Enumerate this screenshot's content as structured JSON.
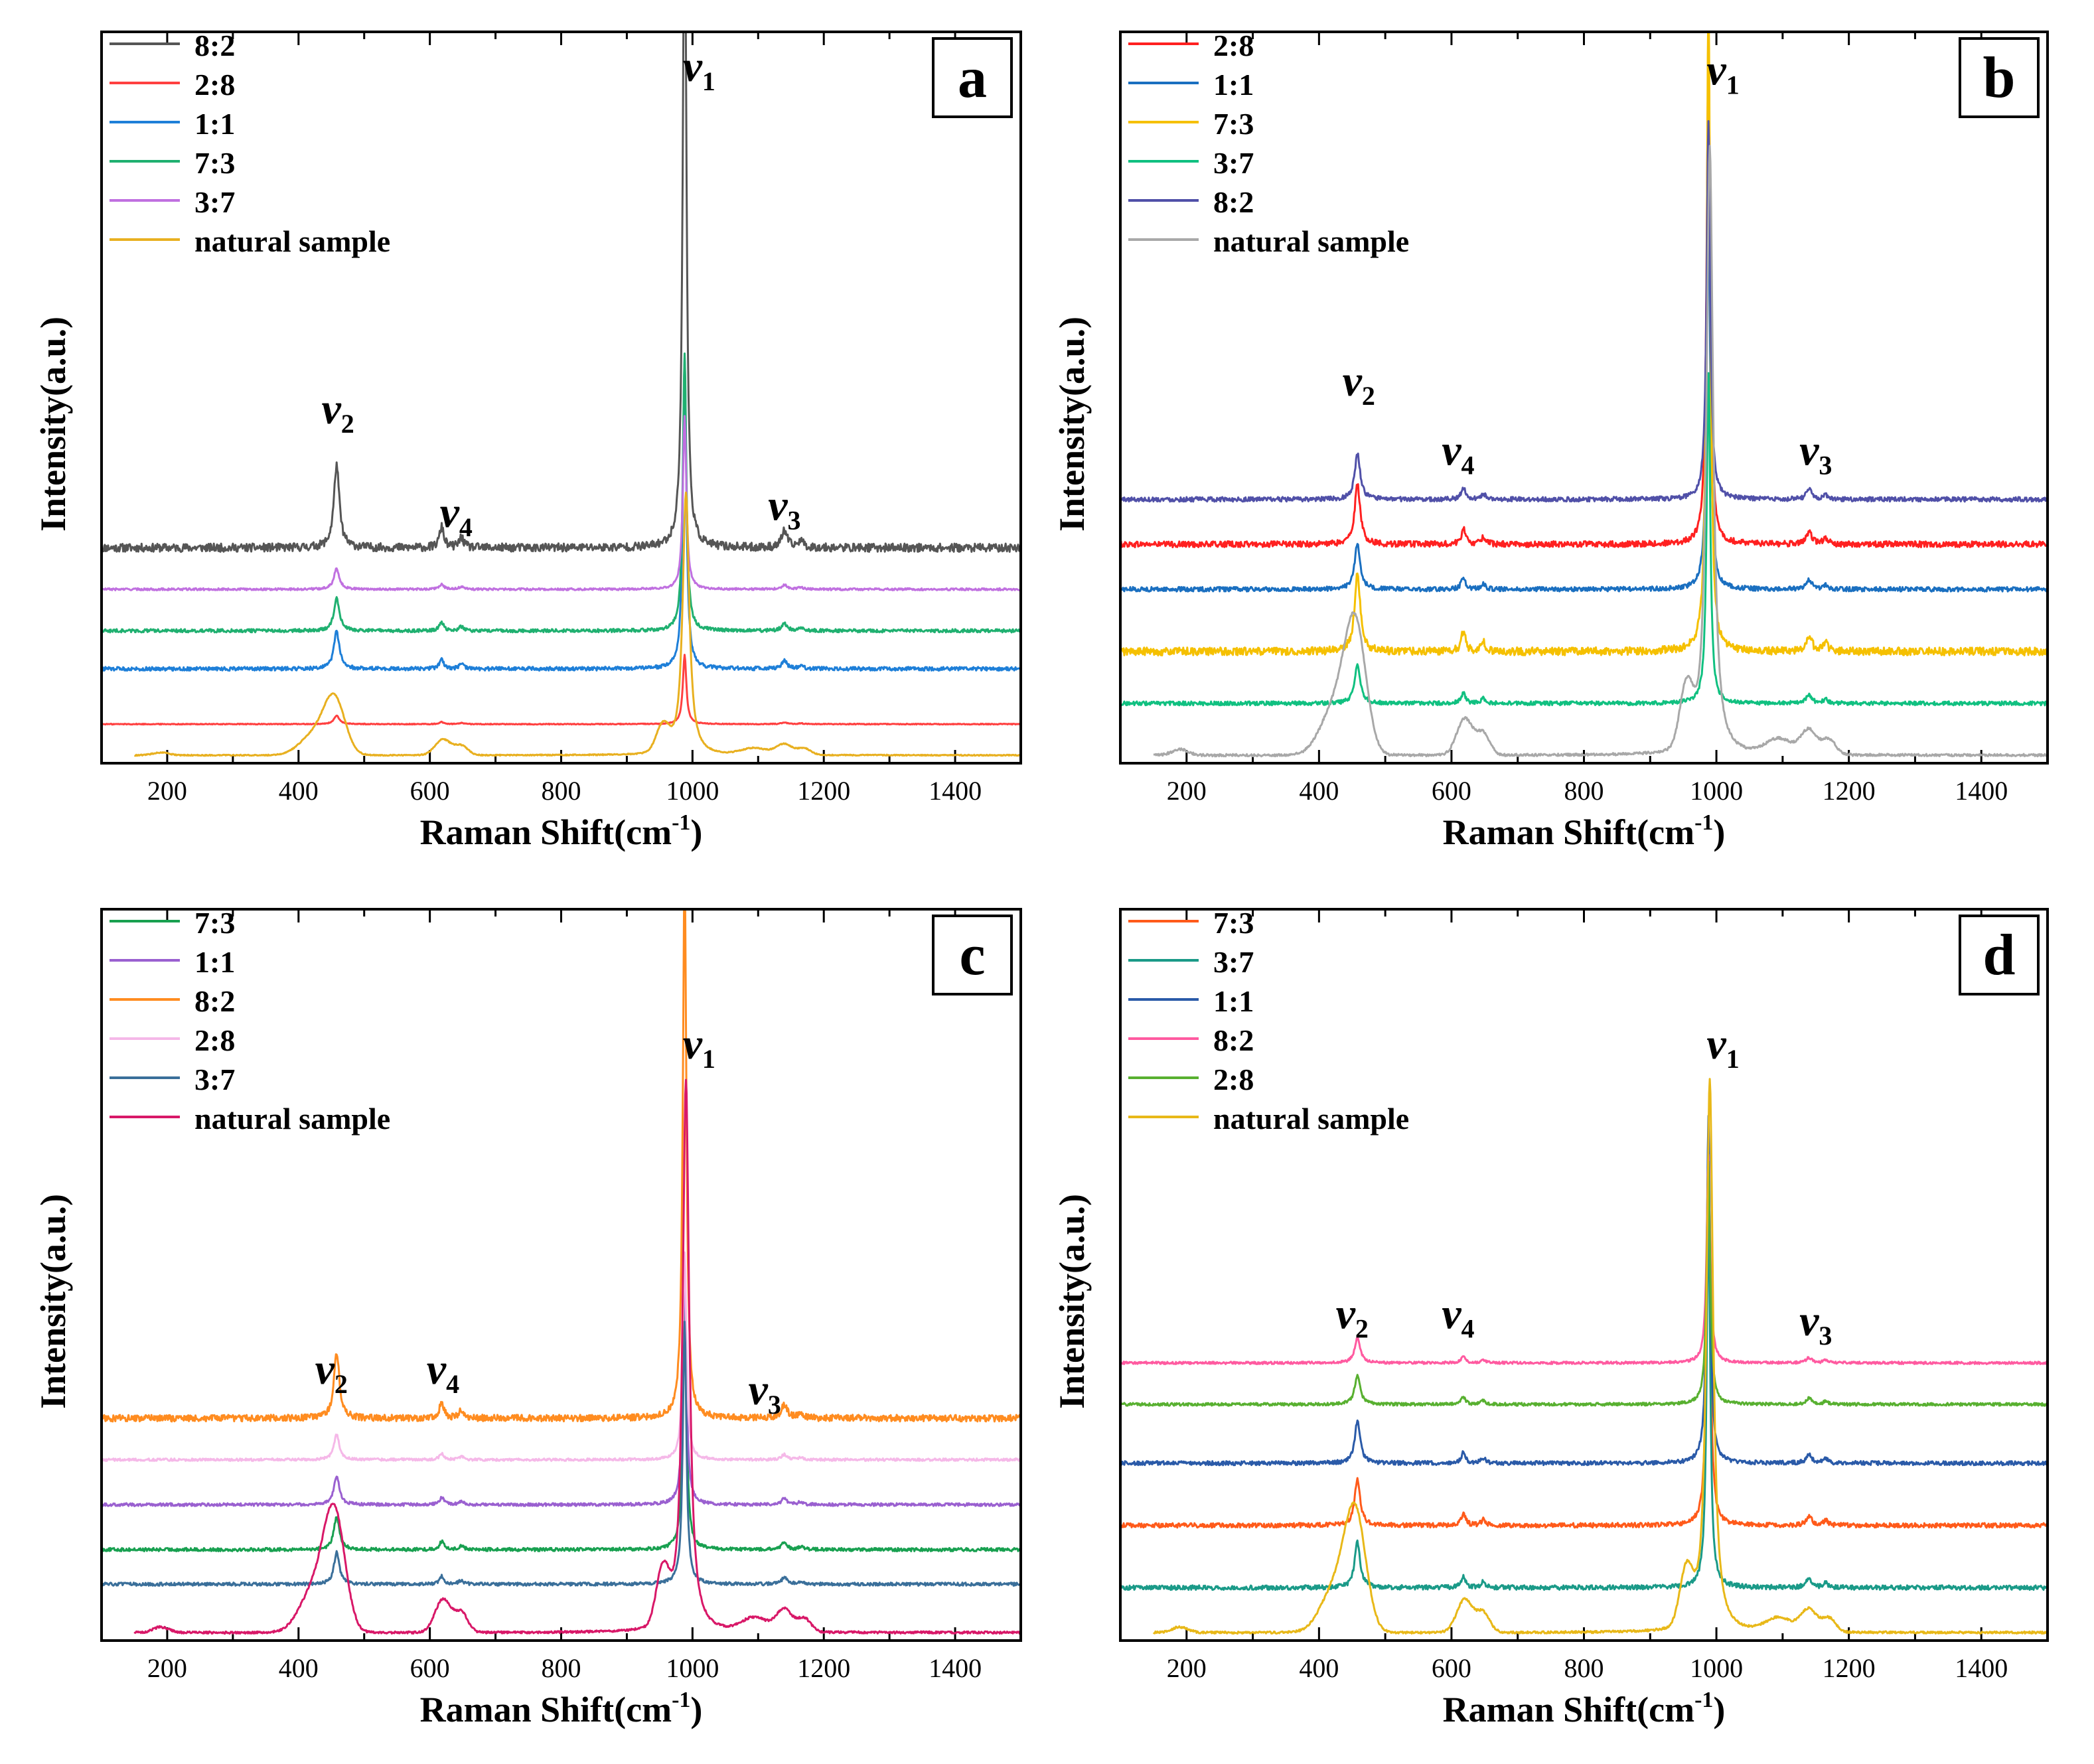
{
  "chart_data": [
    {
      "type": "line",
      "panel_label": "a",
      "xlabel": "Raman  Shift(cm",
      "xlabel_sup": "-1",
      "xlabel_end": ")",
      "ylabel": "Intensity(a.u.)",
      "xlim": [
        100,
        1500
      ],
      "xticks": [
        200,
        400,
        600,
        800,
        1000,
        1200,
        1400
      ],
      "legend_position": "top-left",
      "series": [
        {
          "name": "8:2",
          "color": "#555555",
          "offset": 0.3,
          "scale": 1.0
        },
        {
          "name": "2:8",
          "color": "#ff4040",
          "offset": 0.045,
          "scale": 0.1
        },
        {
          "name": "1:1",
          "color": "#1e7fd8",
          "offset": 0.125,
          "scale": 0.45
        },
        {
          "name": "7:3",
          "color": "#1fb070",
          "offset": 0.18,
          "scale": 0.4
        },
        {
          "name": "3:7",
          "color": "#c070e0",
          "offset": 0.24,
          "scale": 0.25
        },
        {
          "name": "natural sample",
          "color": "#e8b020",
          "offset": 0.0,
          "scale": 0.38,
          "natural": true
        }
      ],
      "peaks": [
        {
          "label": "v",
          "sub": "2",
          "x": 460,
          "y": 0.48
        },
        {
          "label": "v",
          "sub": "4",
          "x": 640,
          "y": 0.33
        },
        {
          "label": "v",
          "sub": "1",
          "x": 1010,
          "y": 0.975
        },
        {
          "label": "v",
          "sub": "3",
          "x": 1140,
          "y": 0.34
        }
      ]
    },
    {
      "type": "line",
      "panel_label": "b",
      "xlabel": "Raman  Shift(cm",
      "xlabel_sup": "-1",
      "xlabel_end": ")",
      "ylabel": "Intensity(a.u.)",
      "xlim": [
        100,
        1500
      ],
      "xticks": [
        200,
        400,
        600,
        800,
        1000,
        1200,
        1400
      ],
      "legend_position": "top-left",
      "series": [
        {
          "name": "2:8",
          "color": "#ff2020",
          "offset": 0.305,
          "scale": 0.72
        },
        {
          "name": "1:1",
          "color": "#1a6fc0",
          "offset": 0.24,
          "scale": 0.55
        },
        {
          "name": "7:3",
          "color": "#f5c000",
          "offset": 0.15,
          "scale": 0.95
        },
        {
          "name": "3:7",
          "color": "#10c080",
          "offset": 0.075,
          "scale": 0.48
        },
        {
          "name": "8:2",
          "color": "#5050a8",
          "offset": 0.37,
          "scale": 0.55
        },
        {
          "name": "natural sample",
          "color": "#a8a8a8",
          "offset": 0.0,
          "scale": 0.88,
          "natural": true
        }
      ],
      "peaks": [
        {
          "label": "v",
          "sub": "2",
          "x": 460,
          "y": 0.52
        },
        {
          "label": "v",
          "sub": "4",
          "x": 610,
          "y": 0.42
        },
        {
          "label": "v",
          "sub": "1",
          "x": 1010,
          "y": 0.97
        },
        {
          "label": "v",
          "sub": "3",
          "x": 1150,
          "y": 0.42
        }
      ]
    },
    {
      "type": "line",
      "panel_label": "c",
      "xlabel": "Raman  Shift(cm",
      "xlabel_sup": "-1",
      "xlabel_end": ")",
      "ylabel": "Intensity(a.u.)",
      "xlim": [
        100,
        1500
      ],
      "xticks": [
        200,
        400,
        600,
        800,
        1000,
        1200,
        1400
      ],
      "legend_position": "top-left",
      "series": [
        {
          "name": "7:3",
          "color": "#18a050",
          "offset": 0.12,
          "scale": 0.4
        },
        {
          "name": "1:1",
          "color": "#9a60d0",
          "offset": 0.185,
          "scale": 0.35
        },
        {
          "name": "8:2",
          "color": "#ff8c20",
          "offset": 0.31,
          "scale": 0.8
        },
        {
          "name": "2:8",
          "color": "#f5b8e8",
          "offset": 0.25,
          "scale": 0.3
        },
        {
          "name": "3:7",
          "color": "#3a6f9a",
          "offset": 0.07,
          "scale": 0.38
        },
        {
          "name": "natural sample",
          "color": "#d81868",
          "offset": 0.0,
          "scale": 0.8,
          "natural": true
        }
      ],
      "peaks": [
        {
          "label": "v",
          "sub": "2",
          "x": 450,
          "y": 0.36
        },
        {
          "label": "v",
          "sub": "4",
          "x": 620,
          "y": 0.36
        },
        {
          "label": "v",
          "sub": "1",
          "x": 1010,
          "y": 0.83
        },
        {
          "label": "v",
          "sub": "3",
          "x": 1110,
          "y": 0.33
        }
      ]
    },
    {
      "type": "line",
      "panel_label": "d",
      "xlabel": "Raman  Shift(cm",
      "xlabel_sup": "-1",
      "xlabel_end": ")",
      "ylabel": "Intensity(a.u.)",
      "xlim": [
        100,
        1500
      ],
      "xticks": [
        200,
        400,
        600,
        800,
        1000,
        1200,
        1400
      ],
      "legend_position": "top-left",
      "series": [
        {
          "name": "7:3",
          "color": "#ff5a1a",
          "offset": 0.155,
          "scale": 0.55
        },
        {
          "name": "3:7",
          "color": "#1a9a88",
          "offset": 0.065,
          "scale": 0.55
        },
        {
          "name": "1:1",
          "color": "#2a5aa8",
          "offset": 0.245,
          "scale": 0.5
        },
        {
          "name": "8:2",
          "color": "#ff5aa0",
          "offset": 0.39,
          "scale": 0.3
        },
        {
          "name": "2:8",
          "color": "#58b030",
          "offset": 0.33,
          "scale": 0.35
        },
        {
          "name": "natural sample",
          "color": "#e8b818",
          "offset": 0.0,
          "scale": 0.8,
          "natural": true
        }
      ],
      "peaks": [
        {
          "label": "v",
          "sub": "2",
          "x": 450,
          "y": 0.44
        },
        {
          "label": "v",
          "sub": "4",
          "x": 610,
          "y": 0.44
        },
        {
          "label": "v",
          "sub": "1",
          "x": 1010,
          "y": 0.83
        },
        {
          "label": "v",
          "sub": "3",
          "x": 1150,
          "y": 0.43
        }
      ]
    }
  ]
}
